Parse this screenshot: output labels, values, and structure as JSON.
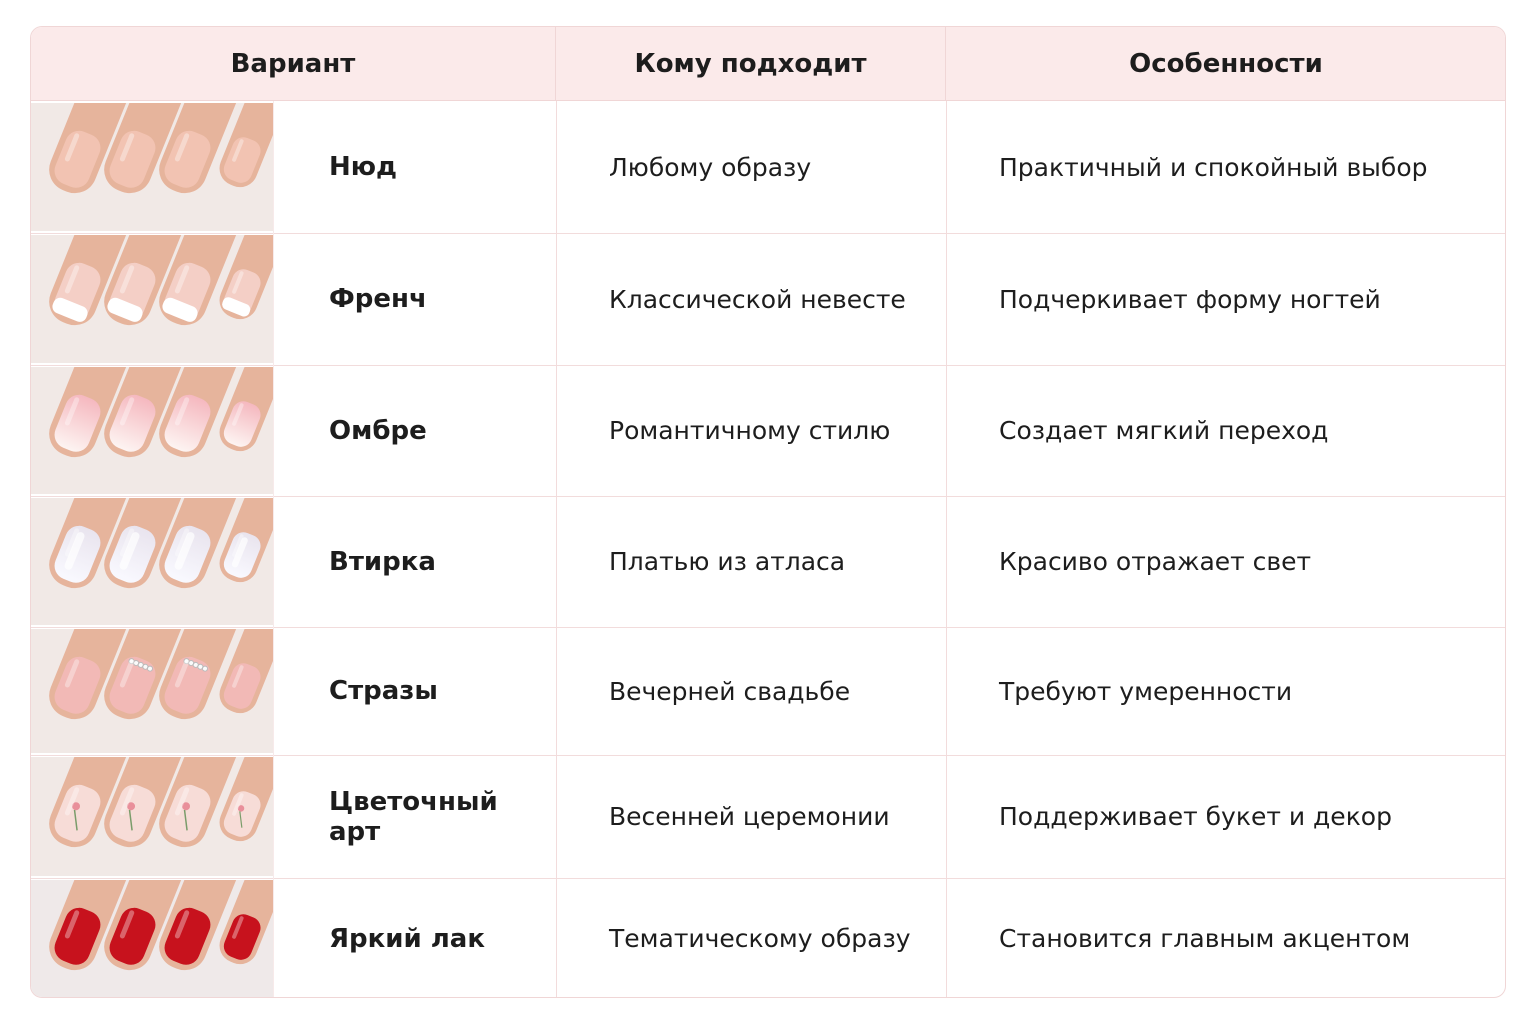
{
  "header": {
    "columns": [
      "Вариант",
      "Кому подходит",
      "Особенности"
    ]
  },
  "rows": [
    {
      "variant": "Нюд",
      "suits": "Любому образу",
      "features": "Практичный и спокойный выбор"
    },
    {
      "variant": "Френч",
      "suits": "Классической невесте",
      "features": "Подчеркивает форму ногтей"
    },
    {
      "variant": "Омбре",
      "suits": "Романтичному стилю",
      "features": "Создает мягкий переход"
    },
    {
      "variant": "Втирка",
      "suits": "Платью из атласа",
      "features": "Красиво отражает свет"
    },
    {
      "variant": "Стразы",
      "suits": "Вечерней свадьбе",
      "features": "Требуют умеренности"
    },
    {
      "variant": "Цветочный арт",
      "suits": "Весенней церемонии",
      "features": "Поддерживает букет и декор"
    },
    {
      "variant": "Яркий лак",
      "suits": "Тематическому образу",
      "features": "Становится главным акцентом"
    }
  ]
}
